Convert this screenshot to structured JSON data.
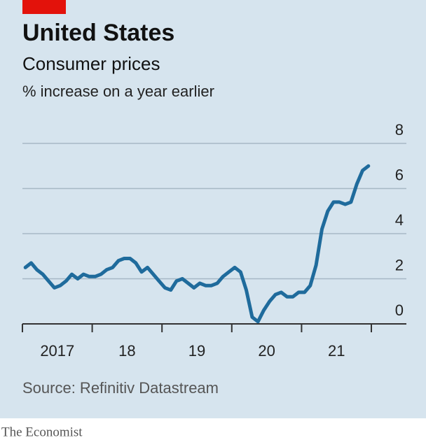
{
  "chart_data": {
    "type": "line",
    "title": "United States",
    "subtitle": "Consumer prices",
    "y_label": "% increase on a year earlier",
    "source": "Source: Refinitiv Datastream",
    "brand": "The Economist",
    "x": [
      2017.042,
      2017.125,
      2017.208,
      2017.292,
      2017.375,
      2017.458,
      2017.542,
      2017.625,
      2017.708,
      2017.792,
      2017.875,
      2017.958,
      2018.042,
      2018.125,
      2018.208,
      2018.292,
      2018.375,
      2018.458,
      2018.542,
      2018.625,
      2018.708,
      2018.792,
      2018.875,
      2018.958,
      2019.042,
      2019.125,
      2019.208,
      2019.292,
      2019.375,
      2019.458,
      2019.542,
      2019.625,
      2019.708,
      2019.792,
      2019.875,
      2019.958,
      2020.042,
      2020.125,
      2020.208,
      2020.292,
      2020.375,
      2020.458,
      2020.542,
      2020.625,
      2020.708,
      2020.792,
      2020.875,
      2020.958,
      2021.042,
      2021.125,
      2021.208,
      2021.292,
      2021.375,
      2021.458,
      2021.542,
      2021.625,
      2021.708,
      2021.792,
      2021.875,
      2021.958
    ],
    "series": [
      {
        "name": "Consumer prices",
        "color": "#1f6b9c",
        "values": [
          2.5,
          2.7,
          2.4,
          2.2,
          1.9,
          1.6,
          1.7,
          1.9,
          2.2,
          2.0,
          2.2,
          2.1,
          2.1,
          2.2,
          2.4,
          2.5,
          2.8,
          2.9,
          2.9,
          2.7,
          2.3,
          2.5,
          2.2,
          1.9,
          1.6,
          1.5,
          1.9,
          2.0,
          1.8,
          1.6,
          1.8,
          1.7,
          1.7,
          1.8,
          2.1,
          2.3,
          2.5,
          2.3,
          1.5,
          0.3,
          0.1,
          0.6,
          1.0,
          1.3,
          1.4,
          1.2,
          1.2,
          1.4,
          1.4,
          1.7,
          2.6,
          4.2,
          5.0,
          5.4,
          5.4,
          5.3,
          5.4,
          6.2,
          6.8,
          7.0
        ]
      }
    ],
    "xlim": [
      2017,
      2022
    ],
    "xtick_marks": [
      2017,
      2018,
      2019,
      2020,
      2021,
      2022
    ],
    "xticks": [
      {
        "value": 2017.5,
        "label": "2017"
      },
      {
        "value": 2018.5,
        "label": "18"
      },
      {
        "value": 2019.5,
        "label": "19"
      },
      {
        "value": 2020.5,
        "label": "20"
      },
      {
        "value": 2021.5,
        "label": "21"
      }
    ],
    "ylim": [
      0,
      8
    ],
    "yticks": [
      0,
      2,
      4,
      6,
      8
    ],
    "grid": true
  }
}
